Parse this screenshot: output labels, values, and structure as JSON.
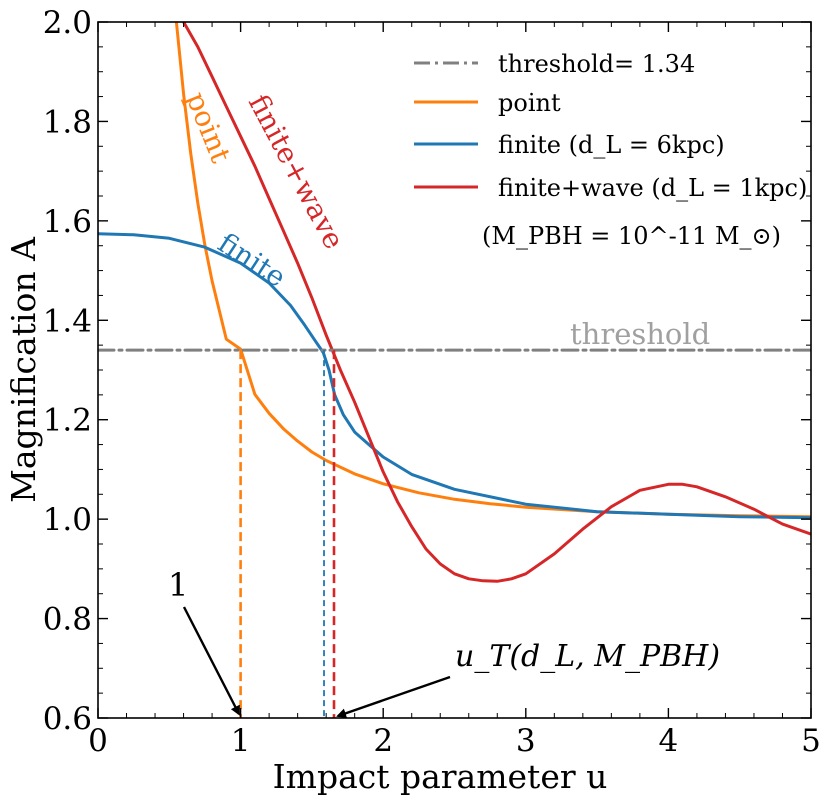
{
  "chart_data": {
    "type": "line",
    "xlabel": "Impact parameter u",
    "ylabel": "Magnification A",
    "xlim": [
      0,
      5
    ],
    "ylim": [
      0.6,
      2.0
    ],
    "xticks": [
      "0",
      "1",
      "2",
      "3",
      "4",
      "5"
    ],
    "yticks": [
      "0.6",
      "0.8",
      "1.0",
      "1.2",
      "1.4",
      "1.6",
      "1.8",
      "2.0"
    ],
    "threshold": 1.34,
    "series": [
      {
        "name": "point",
        "color": "#ff7f0e",
        "x": [
          0.55,
          0.6,
          0.65,
          0.7,
          0.75,
          0.8,
          0.9,
          1.0,
          1.1,
          1.2,
          1.3,
          1.4,
          1.5,
          1.6,
          1.8,
          2.0,
          2.25,
          2.5,
          2.75,
          3.0,
          3.5,
          4.0,
          4.5,
          5.0
        ],
        "values": [
          2.0,
          1.855,
          1.736,
          1.636,
          1.551,
          1.479,
          1.362,
          1.342,
          1.251,
          1.213,
          1.182,
          1.157,
          1.135,
          1.118,
          1.091,
          1.071,
          1.053,
          1.04,
          1.031,
          1.024,
          1.015,
          1.01,
          1.007,
          1.005
        ]
      },
      {
        "name": "finite (d_L = 6kpc)",
        "color": "#1f77b4",
        "x": [
          0,
          0.25,
          0.5,
          0.75,
          1.0,
          1.2,
          1.35,
          1.45,
          1.52,
          1.58,
          1.62,
          1.66,
          1.72,
          1.8,
          1.9,
          2.0,
          2.2,
          2.5,
          3.0,
          3.5,
          4.0,
          4.5,
          5.0
        ],
        "values": [
          1.574,
          1.572,
          1.565,
          1.547,
          1.515,
          1.475,
          1.43,
          1.39,
          1.36,
          1.335,
          1.3,
          1.25,
          1.21,
          1.175,
          1.15,
          1.125,
          1.09,
          1.06,
          1.03,
          1.015,
          1.01,
          1.005,
          1.003
        ]
      },
      {
        "name": "finite+wave (d_L = 1kpc)",
        "color": "#d62728",
        "x": [
          0.6,
          0.7,
          0.8,
          0.9,
          1.0,
          1.1,
          1.2,
          1.3,
          1.4,
          1.5,
          1.6,
          1.7,
          1.8,
          1.9,
          2.0,
          2.1,
          2.2,
          2.3,
          2.4,
          2.5,
          2.6,
          2.7,
          2.8,
          2.9,
          3.0,
          3.2,
          3.4,
          3.6,
          3.8,
          4.0,
          4.1,
          4.2,
          4.4,
          4.6,
          4.8,
          5.0
        ],
        "values": [
          2.0,
          1.95,
          1.89,
          1.83,
          1.77,
          1.71,
          1.645,
          1.58,
          1.515,
          1.445,
          1.37,
          1.3,
          1.235,
          1.165,
          1.095,
          1.035,
          0.985,
          0.94,
          0.91,
          0.89,
          0.88,
          0.876,
          0.875,
          0.88,
          0.89,
          0.93,
          0.98,
          1.025,
          1.058,
          1.07,
          1.07,
          1.065,
          1.045,
          1.02,
          0.99,
          0.97
        ]
      },
      {
        "name": "threshold= 1.34",
        "color": "#808080",
        "x": [
          0,
          5
        ],
        "values": [
          1.34,
          1.34
        ]
      }
    ],
    "drop_lines": [
      {
        "x": 1.0,
        "color": "#ff7f0e",
        "style": "dashed-bold"
      },
      {
        "x": 1.585,
        "color": "#1f77b4",
        "style": "dashed-thin"
      },
      {
        "x": 1.655,
        "color": "#d62728",
        "style": "dashed-bold"
      }
    ],
    "legend": {
      "position": "top-right",
      "entries": [
        {
          "label": "threshold= 1.34",
          "color": "#808080",
          "dash": "dashdot"
        },
        {
          "label": "point",
          "color": "#ff7f0e",
          "dash": "solid"
        },
        {
          "label": "finite (d_L = 6kpc)",
          "color": "#1f77b4",
          "dash": "solid"
        },
        {
          "label": "finite+wave (d_L = 1kpc)",
          "color": "#d62728",
          "dash": "solid"
        }
      ],
      "note": "(M_PBH = 10^-11 M_⊙)"
    },
    "annotations": {
      "curve_point": "point",
      "curve_finite": "finite",
      "curve_wave": "finite+wave",
      "threshold_label": "threshold",
      "arrow_one": "1",
      "arrow_ut": "u_T(d_L, M_PBH)"
    }
  }
}
